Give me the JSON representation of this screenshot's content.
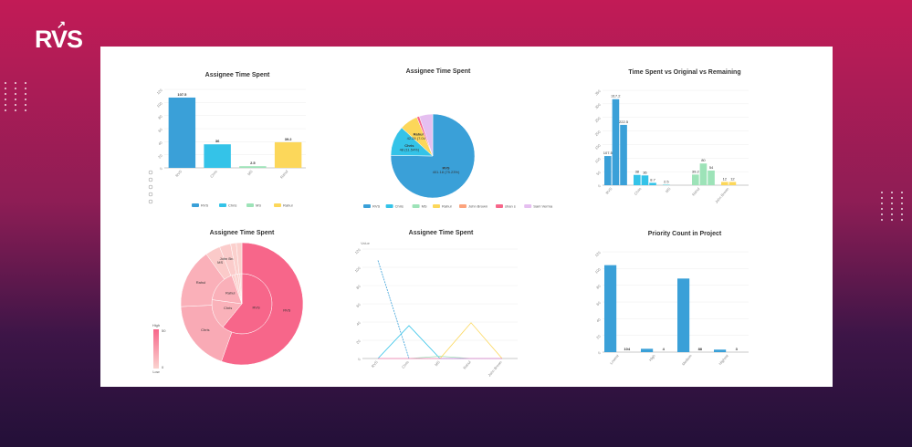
{
  "brand": {
    "logo": "RVS"
  },
  "chart_data": [
    {
      "id": "c1",
      "type": "bar",
      "title": "Assignee Time Spent",
      "categories": [
        "RVS",
        "Chris",
        "MS",
        "Rahul"
      ],
      "values": [
        107.5,
        36,
        2.5,
        39.2
      ],
      "colors": [
        "#3aa0d8",
        "#34c3e8",
        "#9de3b8",
        "#fcd75a"
      ],
      "ylim": [
        0,
        120
      ],
      "yticks": [
        0,
        20,
        40,
        60,
        80,
        100,
        120
      ],
      "legend": [
        "RVS",
        "Chris",
        "MS",
        "Rahul"
      ],
      "legend_position": "bottom",
      "grid": true
    },
    {
      "id": "c2",
      "type": "pie",
      "title": "Assignee Time Spent",
      "slices": [
        {
          "name": "RVS",
          "percent": 75.23,
          "label": "RVS",
          "value_label": "401.18 (75.23%)"
        },
        {
          "name": "Chris",
          "percent": 11.54,
          "label": "Chris",
          "value_label": "48 (11.54%)"
        },
        {
          "name": "MS",
          "percent": 0
        },
        {
          "name": "Rahul",
          "percent": 7.04,
          "label": "Rahul",
          "value_label": "42.28 (7.04%)"
        },
        {
          "name": "John Brown",
          "percent": 0
        },
        {
          "name": "shan s",
          "percent": 1.0
        },
        {
          "name": "Sam Verma",
          "percent": 5.19
        }
      ],
      "colors": [
        "#3aa0d8",
        "#34c3e8",
        "#9de3b8",
        "#fcd75a",
        "#fca37c",
        "#f7668a",
        "#e5bff0"
      ],
      "legend_position": "bottom"
    },
    {
      "id": "c3",
      "type": "bar",
      "title": "Time Spent vs Original vs Remaining",
      "categories": [
        "RVS",
        "Chris",
        "MS",
        "Rahul",
        "John Brown"
      ],
      "groups": [
        [
          107.5,
          317.2,
          222.5
        ],
        [
          38,
          36,
          8.7
        ],
        [
          2.5,
          null,
          null
        ],
        [
          39.2,
          80,
          54
        ],
        [
          12,
          12,
          null
        ]
      ],
      "colors": [
        "#3aa0d8",
        "#34c3e8",
        "#7fd8e0",
        "#9de3b8",
        "#fcd75a"
      ],
      "ylim": [
        0,
        350
      ],
      "yticks": [
        0,
        50,
        100,
        150,
        200,
        250,
        300,
        350
      ],
      "grid": true
    },
    {
      "id": "c4",
      "type": "sunburst",
      "title": "Assignee Time Spent",
      "inner": [
        {
          "name": "RVS",
          "value": 56
        },
        {
          "name": "Chris",
          "value": 15
        },
        {
          "name": "Rahul",
          "value": 16
        },
        {
          "name": "MS",
          "value": 1.5
        },
        {
          "name": "John Brown",
          "value": 1.5
        },
        {
          "name": "shan s",
          "value": 1
        },
        {
          "name": "Sam Verma",
          "value": 1
        }
      ],
      "outer": [
        {
          "name": "RVS",
          "value": 56
        },
        {
          "name": "Chris",
          "value": 19
        },
        {
          "name": "Rahul",
          "value": 16
        },
        {
          "name": "MS",
          "value": 4
        },
        {
          "name": "John Brown",
          "value": 3
        },
        {
          "name": "shan s",
          "value": 1.5
        },
        {
          "name": "Sam Verma",
          "value": 1.5
        }
      ],
      "visualmap": {
        "high_label": "High",
        "low_label": "Low",
        "max": 50,
        "min": 0,
        "colors": [
          "#fbd3cf",
          "#f7668a"
        ]
      }
    },
    {
      "id": "c5",
      "type": "line",
      "title": "Assignee Time Spent",
      "ylabel": "Value",
      "categories": [
        "RVS",
        "Chris",
        "MS",
        "Rahul",
        "John Brown"
      ],
      "series": [
        {
          "values": [
            107.5,
            0,
            0,
            0,
            0
          ],
          "color": "#3aa0d8",
          "dashed": true
        },
        {
          "values": [
            0,
            36,
            0,
            0,
            0
          ],
          "color": "#34c3e8"
        },
        {
          "values": [
            0,
            0,
            2.5,
            0,
            0
          ],
          "color": "#9de3b8"
        },
        {
          "values": [
            0,
            0,
            0,
            39.2,
            0
          ],
          "color": "#fcd75a"
        },
        {
          "values": [
            0,
            0,
            0,
            0,
            0
          ],
          "color": "#f07bd0"
        }
      ],
      "ylim": [
        0,
        120
      ],
      "yticks": [
        0,
        20,
        40,
        60,
        80,
        100,
        120
      ],
      "grid": true
    },
    {
      "id": "c6",
      "type": "bar",
      "title": "Priority Count in Project",
      "categories": [
        "Lowest",
        "High",
        "Medium",
        "Highest"
      ],
      "values": [
        104,
        4,
        88,
        3
      ],
      "colors": [
        "#3aa0d8"
      ],
      "ylim": [
        0,
        120
      ],
      "yticks": [
        0,
        20,
        40,
        60,
        80,
        100,
        120
      ],
      "grid": true
    }
  ]
}
